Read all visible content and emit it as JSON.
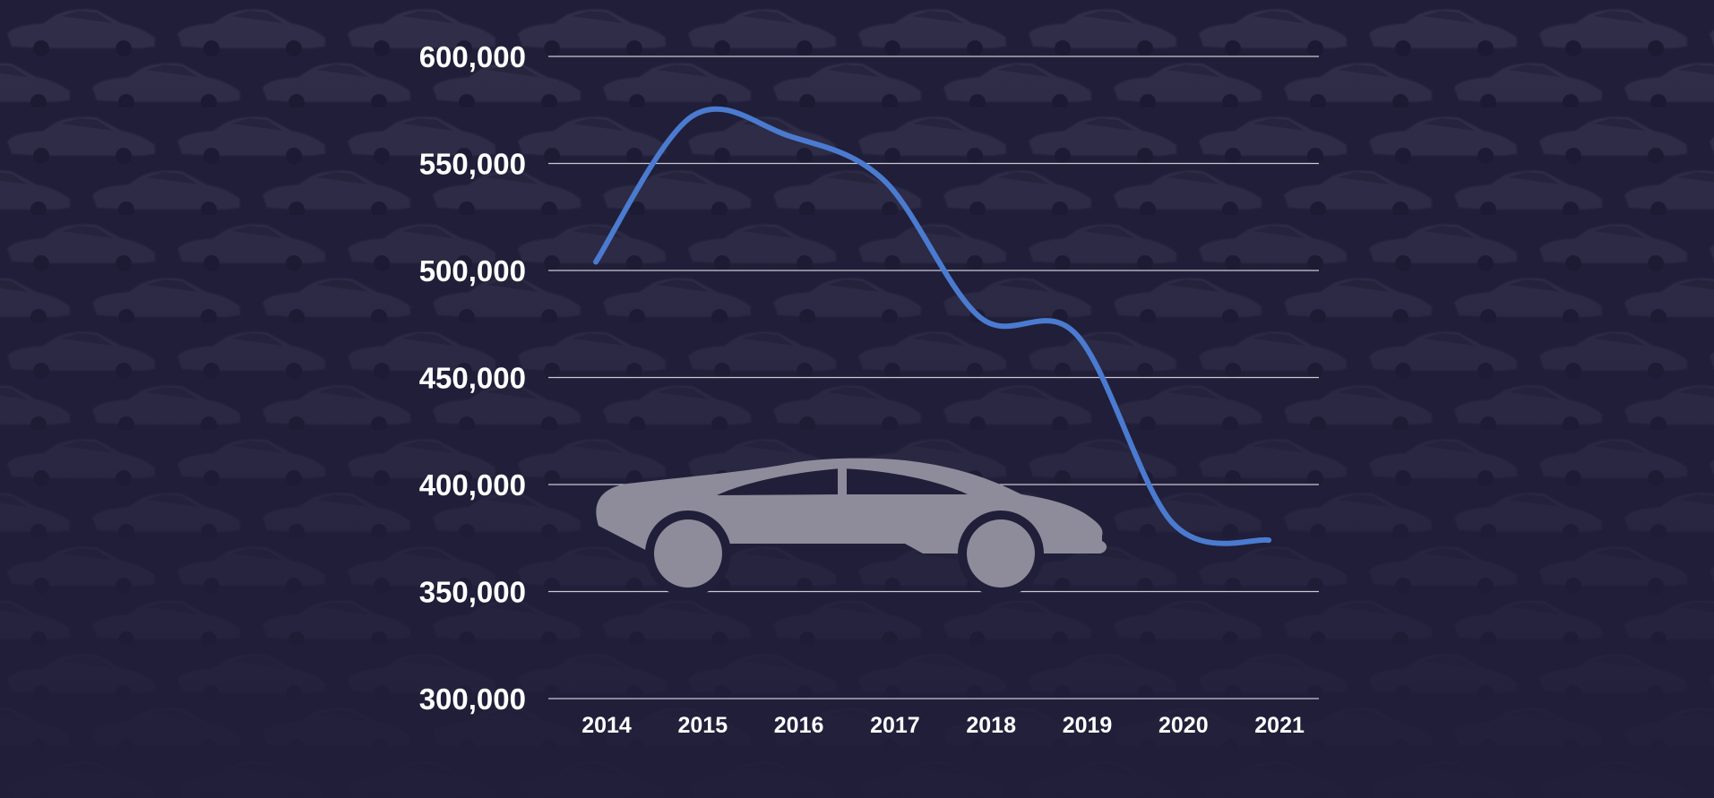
{
  "chart_data": {
    "type": "line",
    "title": "",
    "xlabel": "",
    "ylabel": "",
    "categories": [
      "2014",
      "2015",
      "2016",
      "2017",
      "2018",
      "2019",
      "2020",
      "2021"
    ],
    "series": [
      {
        "name": "",
        "values": [
          504000,
          572000,
          563000,
          542000,
          478000,
          470000,
          382000,
          374000
        ],
        "color": "#4a7bd0"
      }
    ],
    "y_ticks": [
      "600,000",
      "550,000",
      "500,000",
      "450,000",
      "400,000",
      "350,000",
      "300,000"
    ],
    "ylim": [
      300000,
      600000
    ],
    "grid": true
  },
  "colors": {
    "background": "#201e38",
    "line": "#4a7bd0",
    "gridline": "#c9c8d4",
    "car_icon": "#8e8c9a"
  },
  "icons": {
    "background": "car-pattern-background",
    "decoration": "car-icon"
  }
}
